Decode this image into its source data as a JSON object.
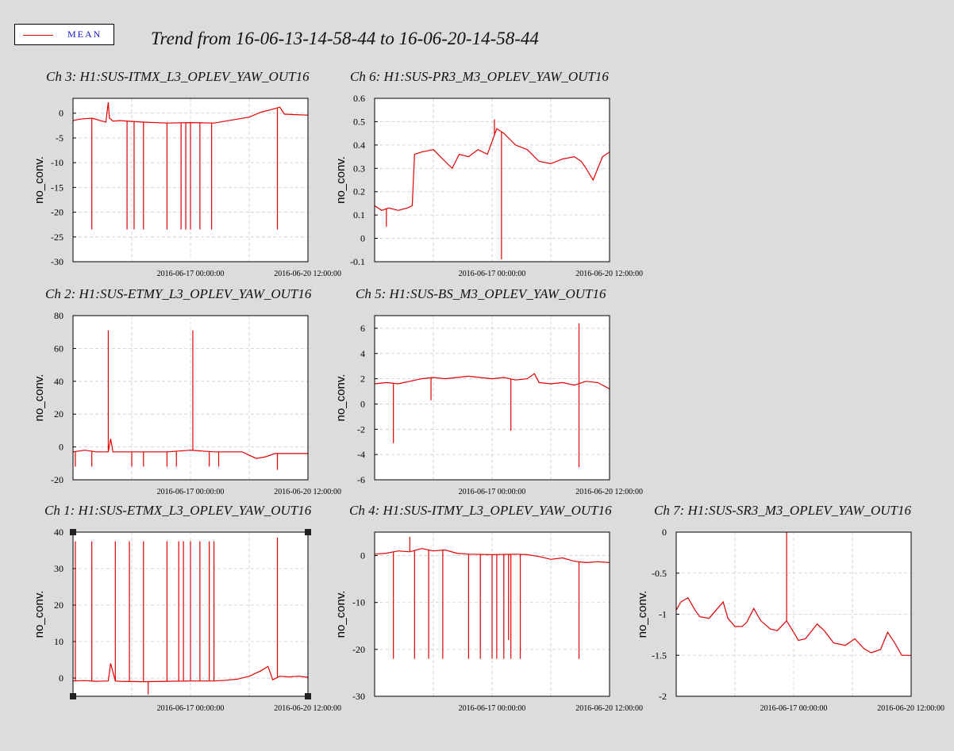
{
  "title": "Trend from 16-06-13-14-58-44 to 16-06-20-14-58-44",
  "legend": {
    "label": "MEAN",
    "color": "#e00000"
  },
  "chart_data": [
    {
      "id": "ch3",
      "type": "line",
      "title": "Ch 3: H1:SUS-ITMX_L3_OPLEV_YAW_OUT16",
      "ylabel": "no_conv.",
      "ylim": [
        -30,
        3
      ],
      "yticks": [
        0,
        -5,
        -10,
        -15,
        -20,
        -25,
        -30
      ],
      "xticks": [
        "2016-06-17 00:00:00",
        "2016-06-20 12:00:00"
      ],
      "grid": true,
      "series": [
        {
          "color": "#e00000",
          "x": [
            0,
            0.03,
            0.08,
            0.14,
            0.15,
            0.155,
            0.17,
            0.2,
            0.3,
            0.4,
            0.5,
            0.6,
            0.65,
            0.75,
            0.8,
            0.85,
            0.88,
            0.9,
            0.95,
            1.0
          ],
          "y": [
            -1.5,
            -1.2,
            -1.0,
            -1.8,
            2.2,
            -1.0,
            -1.6,
            -1.5,
            -1.8,
            -2.0,
            -1.9,
            -2.0,
            -1.6,
            -0.8,
            0.2,
            0.8,
            1.2,
            -0.2,
            -0.3,
            -0.4
          ],
          "spikes": [
            {
              "x": 0.08,
              "y": -23.5
            },
            {
              "x": 0.23,
              "y": -23.5
            },
            {
              "x": 0.26,
              "y": -23.5
            },
            {
              "x": 0.3,
              "y": -23.5
            },
            {
              "x": 0.4,
              "y": -23.5
            },
            {
              "x": 0.46,
              "y": -23.5
            },
            {
              "x": 0.48,
              "y": -23.5
            },
            {
              "x": 0.5,
              "y": -23.5
            },
            {
              "x": 0.54,
              "y": -23.5
            },
            {
              "x": 0.59,
              "y": -23.5
            },
            {
              "x": 0.87,
              "y": -23.5
            }
          ]
        }
      ]
    },
    {
      "id": "ch6",
      "type": "line",
      "title": "Ch 6: H1:SUS-PR3_M3_OPLEV_YAW_OUT16",
      "ylabel": "no_conv.",
      "ylim": [
        -0.1,
        0.6
      ],
      "yticks": [
        0.6,
        0.5,
        0.4,
        0.3,
        0.2,
        0.1,
        0,
        -0.1
      ],
      "xticks": [
        "2016-06-17 00:00:00",
        "2016-06-20 12:00:00"
      ],
      "grid": true,
      "series": [
        {
          "color": "#e00000",
          "x": [
            0,
            0.03,
            0.06,
            0.1,
            0.14,
            0.16,
            0.17,
            0.2,
            0.25,
            0.27,
            0.3,
            0.33,
            0.36,
            0.4,
            0.44,
            0.48,
            0.52,
            0.55,
            0.58,
            0.6,
            0.65,
            0.7,
            0.75,
            0.8,
            0.85,
            0.88,
            0.9,
            0.93,
            0.97,
            1.0
          ],
          "y": [
            0.14,
            0.12,
            0.13,
            0.12,
            0.13,
            0.14,
            0.36,
            0.37,
            0.38,
            0.36,
            0.33,
            0.3,
            0.36,
            0.35,
            0.38,
            0.36,
            0.47,
            0.45,
            0.42,
            0.4,
            0.38,
            0.33,
            0.32,
            0.34,
            0.35,
            0.33,
            0.3,
            0.25,
            0.35,
            0.37
          ],
          "spikes": [
            {
              "x": 0.54,
              "y": -0.09
            },
            {
              "x": 0.51,
              "y": 0.51
            },
            {
              "x": 0.05,
              "y": 0.05
            }
          ]
        }
      ]
    },
    {
      "id": "ch2",
      "type": "line",
      "title": "Ch 2: H1:SUS-ETMY_L3_OPLEV_YAW_OUT16",
      "ylabel": "no_conv.",
      "ylim": [
        -20,
        80
      ],
      "yticks": [
        80,
        60,
        40,
        20,
        0,
        -20
      ],
      "xticks": [
        "2016-06-17 00:00:00",
        "2016-06-20 12:00:00"
      ],
      "grid": true,
      "series": [
        {
          "color": "#e00000",
          "x": [
            0,
            0.05,
            0.1,
            0.15,
            0.16,
            0.17,
            0.2,
            0.3,
            0.4,
            0.5,
            0.6,
            0.65,
            0.72,
            0.78,
            0.82,
            0.86,
            0.9,
            0.95,
            1.0
          ],
          "y": [
            -3,
            -2,
            -3,
            -3,
            5,
            -3,
            -3,
            -3,
            -3,
            -2,
            -3,
            -3,
            -3,
            -7,
            -6,
            -4,
            -4,
            -4,
            -4
          ],
          "spikes": [
            {
              "x": 0.15,
              "y": 71
            },
            {
              "x": 0.51,
              "y": 71
            },
            {
              "x": 0.01,
              "y": -12
            },
            {
              "x": 0.08,
              "y": -12
            },
            {
              "x": 0.25,
              "y": -12
            },
            {
              "x": 0.3,
              "y": -12
            },
            {
              "x": 0.4,
              "y": -12
            },
            {
              "x": 0.44,
              "y": -12
            },
            {
              "x": 0.58,
              "y": -12
            },
            {
              "x": 0.62,
              "y": -12
            },
            {
              "x": 0.87,
              "y": -14
            }
          ]
        }
      ]
    },
    {
      "id": "ch5",
      "type": "line",
      "title": "Ch 5: H1:SUS-BS_M3_OPLEV_YAW_OUT16",
      "ylabel": "no_conv.",
      "ylim": [
        -6,
        7
      ],
      "yticks": [
        6,
        4,
        2,
        0,
        -2,
        -4,
        -6
      ],
      "xticks": [
        "2016-06-17 00:00:00",
        "2016-06-20 12:00:00"
      ],
      "grid": true,
      "series": [
        {
          "color": "#e00000",
          "x": [
            0,
            0.05,
            0.1,
            0.15,
            0.2,
            0.25,
            0.3,
            0.35,
            0.4,
            0.45,
            0.5,
            0.55,
            0.6,
            0.65,
            0.68,
            0.7,
            0.75,
            0.8,
            0.85,
            0.9,
            0.95,
            1.0
          ],
          "y": [
            1.6,
            1.7,
            1.6,
            1.8,
            2.0,
            2.1,
            2.0,
            2.1,
            2.2,
            2.1,
            2.0,
            2.1,
            1.9,
            2.0,
            2.4,
            1.7,
            1.6,
            1.7,
            1.5,
            1.8,
            1.7,
            1.2
          ],
          "spikes": [
            {
              "x": 0.08,
              "y": -3.1
            },
            {
              "x": 0.58,
              "y": -2.1
            },
            {
              "x": 0.87,
              "y": 6.4
            },
            {
              "x": 0.87,
              "y": -5.0
            },
            {
              "x": 0.24,
              "y": 0.3
            }
          ]
        }
      ]
    },
    {
      "id": "ch1",
      "type": "line",
      "title": "Ch 1: H1:SUS-ETMX_L3_OPLEV_YAW_OUT16",
      "ylabel": "no_conv.",
      "ylim": [
        -5,
        40
      ],
      "yticks": [
        40,
        30,
        20,
        10,
        0
      ],
      "xticks": [
        "2016-06-17 00:00:00",
        "2016-06-20 12:00:00"
      ],
      "grid": true,
      "selected": true,
      "series": [
        {
          "color": "#e00000",
          "x": [
            0,
            0.05,
            0.1,
            0.15,
            0.16,
            0.18,
            0.2,
            0.3,
            0.4,
            0.5,
            0.6,
            0.65,
            0.7,
            0.75,
            0.8,
            0.83,
            0.85,
            0.88,
            0.92,
            0.96,
            1.0
          ],
          "y": [
            -0.8,
            -0.7,
            -0.9,
            -0.8,
            4,
            -0.8,
            -0.9,
            -1.0,
            -0.9,
            -0.8,
            -0.8,
            -0.6,
            -0.3,
            0.5,
            2.0,
            3.2,
            -0.5,
            0.5,
            0.3,
            0.5,
            0.2
          ],
          "spikes": [
            {
              "x": 0.01,
              "y": 37.5
            },
            {
              "x": 0.08,
              "y": 37.5
            },
            {
              "x": 0.18,
              "y": 37.5
            },
            {
              "x": 0.24,
              "y": 37.5
            },
            {
              "x": 0.3,
              "y": 37.5
            },
            {
              "x": 0.4,
              "y": 37.5
            },
            {
              "x": 0.45,
              "y": 37.5
            },
            {
              "x": 0.47,
              "y": 37.5
            },
            {
              "x": 0.5,
              "y": 37.5
            },
            {
              "x": 0.54,
              "y": 37.5
            },
            {
              "x": 0.58,
              "y": 37.5
            },
            {
              "x": 0.6,
              "y": 37.5
            },
            {
              "x": 0.87,
              "y": 38.5
            },
            {
              "x": 0.32,
              "y": -4.5
            }
          ]
        }
      ]
    },
    {
      "id": "ch4",
      "type": "line",
      "title": "Ch 4: H1:SUS-ITMY_L3_OPLEV_YAW_OUT16",
      "ylabel": "no_conv.",
      "ylim": [
        -30,
        5
      ],
      "yticks": [
        0,
        -10,
        -20,
        -30
      ],
      "xticks": [
        "2016-06-17 00:00:00",
        "2016-06-20 12:00:00"
      ],
      "grid": true,
      "series": [
        {
          "color": "#e00000",
          "x": [
            0,
            0.05,
            0.1,
            0.15,
            0.2,
            0.25,
            0.3,
            0.35,
            0.4,
            0.5,
            0.6,
            0.65,
            0.7,
            0.75,
            0.8,
            0.85,
            0.9,
            0.95,
            1.0
          ],
          "y": [
            0.3,
            0.5,
            1.0,
            0.8,
            1.5,
            1.0,
            1.2,
            0.5,
            0.3,
            0.2,
            0.3,
            0.2,
            -0.2,
            -0.8,
            -0.5,
            -1.2,
            -1.5,
            -1.3,
            -1.5
          ],
          "spikes": [
            {
              "x": 0.08,
              "y": -22
            },
            {
              "x": 0.17,
              "y": -22
            },
            {
              "x": 0.23,
              "y": -22
            },
            {
              "x": 0.29,
              "y": -22
            },
            {
              "x": 0.4,
              "y": -22
            },
            {
              "x": 0.45,
              "y": -22
            },
            {
              "x": 0.5,
              "y": -22
            },
            {
              "x": 0.52,
              "y": -22
            },
            {
              "x": 0.55,
              "y": -22
            },
            {
              "x": 0.58,
              "y": -22
            },
            {
              "x": 0.62,
              "y": -22
            },
            {
              "x": 0.87,
              "y": -22
            },
            {
              "x": 0.15,
              "y": 4
            },
            {
              "x": 0.57,
              "y": -18
            }
          ]
        }
      ]
    },
    {
      "id": "ch7",
      "type": "line",
      "title": "Ch 7: H1:SUS-SR3_M3_OPLEV_YAW_OUT16",
      "ylabel": "no_conv.",
      "ylim": [
        -2,
        0
      ],
      "yticks": [
        0,
        -0.5,
        -1,
        -1.5,
        -2
      ],
      "xticks": [
        "2016-06-17 00:00:00",
        "2016-06-20 12:00:00"
      ],
      "grid": true,
      "series": [
        {
          "color": "#e00000",
          "x": [
            0,
            0.02,
            0.05,
            0.08,
            0.1,
            0.14,
            0.17,
            0.2,
            0.22,
            0.25,
            0.28,
            0.3,
            0.33,
            0.36,
            0.4,
            0.43,
            0.47,
            0.5,
            0.52,
            0.55,
            0.6,
            0.63,
            0.67,
            0.72,
            0.76,
            0.8,
            0.83,
            0.87,
            0.9,
            0.93,
            0.96,
            1.0
          ],
          "y": [
            -0.95,
            -0.85,
            -0.8,
            -0.95,
            -1.03,
            -1.05,
            -0.95,
            -0.85,
            -1.05,
            -1.15,
            -1.15,
            -1.1,
            -0.93,
            -1.08,
            -1.18,
            -1.2,
            -1.08,
            -1.22,
            -1.32,
            -1.3,
            -1.12,
            -1.2,
            -1.35,
            -1.38,
            -1.3,
            -1.42,
            -1.47,
            -1.43,
            -1.22,
            -1.35,
            -1.5,
            -1.5
          ],
          "spikes": [
            {
              "x": 0.47,
              "y": 0.0
            }
          ]
        }
      ]
    }
  ]
}
